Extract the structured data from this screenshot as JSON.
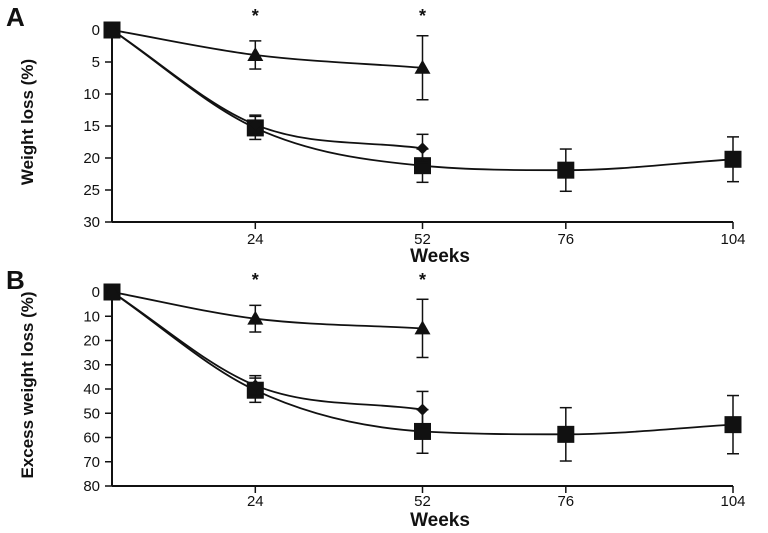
{
  "chart_data": [
    {
      "panel": "A",
      "type": "line",
      "xlabel": "Weeks",
      "ylabel": "Weight loss (%)",
      "x_ticks": [
        24,
        52,
        76,
        104
      ],
      "ylim": [
        0,
        30
      ],
      "y_ticks": [
        0,
        5,
        10,
        15,
        20,
        25,
        30
      ],
      "y_inverted": true,
      "significance_marks": [
        {
          "x": 24,
          "label": "*"
        },
        {
          "x": 52,
          "label": "*"
        }
      ],
      "series": [
        {
          "marker": "square",
          "x": [
            0,
            24,
            52,
            76,
            104
          ],
          "y": [
            0,
            15.3,
            21.2,
            21.9,
            20.2
          ],
          "error": [
            0,
            1.8,
            2.6,
            3.3,
            3.5
          ]
        },
        {
          "marker": "diamond",
          "x": [
            0,
            24,
            52
          ],
          "y": [
            0,
            14.8,
            18.5
          ],
          "error": [
            0,
            1.5,
            2.2
          ]
        },
        {
          "marker": "triangle",
          "x": [
            0,
            24,
            52
          ],
          "y": [
            0,
            3.9,
            5.9
          ],
          "error": [
            0,
            2.2,
            5.0
          ]
        }
      ]
    },
    {
      "panel": "B",
      "type": "line",
      "xlabel": "Weeks",
      "ylabel": "Excess weight loss (%)",
      "x_ticks": [
        24,
        52,
        76,
        104
      ],
      "ylim": [
        0,
        80
      ],
      "y_ticks": [
        0,
        10,
        20,
        30,
        40,
        50,
        60,
        70,
        80
      ],
      "y_inverted": true,
      "significance_marks": [
        {
          "x": 24,
          "label": "*"
        },
        {
          "x": 52,
          "label": "*"
        }
      ],
      "series": [
        {
          "marker": "square",
          "x": [
            0,
            24,
            52,
            76,
            104
          ],
          "y": [
            0,
            40.5,
            57.5,
            58.7,
            54.7
          ],
          "error": [
            0,
            5.0,
            9.0,
            11.0,
            12.0
          ]
        },
        {
          "marker": "diamond",
          "x": [
            0,
            24,
            52
          ],
          "y": [
            0,
            38.5,
            48.5
          ],
          "error": [
            0,
            4.0,
            7.5
          ]
        },
        {
          "marker": "triangle",
          "x": [
            0,
            24,
            52
          ],
          "y": [
            0,
            11.0,
            15.0
          ],
          "error": [
            0,
            5.5,
            12.0
          ]
        }
      ]
    }
  ]
}
